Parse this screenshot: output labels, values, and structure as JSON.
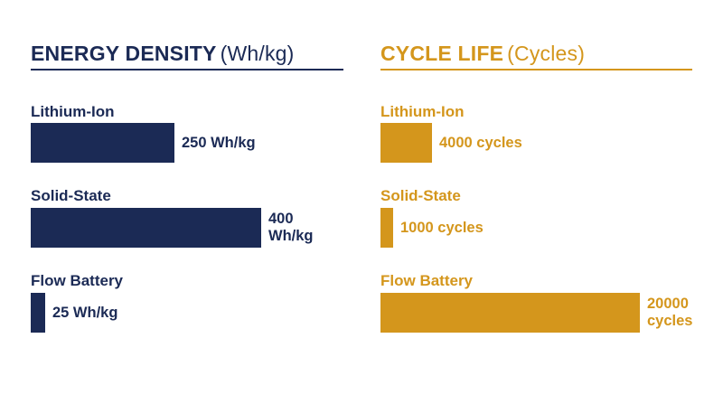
{
  "colors": {
    "navy": "#1b2a55",
    "gold": "#d4961c",
    "rule_navy": "#1b2a55",
    "rule_gold": "#d4961c"
  },
  "chart_data": [
    {
      "type": "bar",
      "orientation": "horizontal",
      "title": "ENERGY DENSITY",
      "unit": "(Wh/kg)",
      "color": "#1b2a55",
      "categories": [
        "Lithium-Ion",
        "Solid-State",
        "Flow Battery"
      ],
      "values": [
        250,
        400,
        25
      ],
      "value_labels": [
        "250 Wh/kg",
        "400 Wh/kg",
        "25 Wh/kg"
      ],
      "xlim": [
        0,
        400
      ],
      "grid": false
    },
    {
      "type": "bar",
      "orientation": "horizontal",
      "title": "CYCLE LIFE",
      "unit": "(Cycles)",
      "color": "#d4961c",
      "categories": [
        "Lithium-Ion",
        "Solid-State",
        "Flow Battery"
      ],
      "values": [
        4000,
        1000,
        20000
      ],
      "value_labels": [
        "4000 cycles",
        "1000 cycles",
        "20000 cycles"
      ],
      "xlim": [
        0,
        20000
      ],
      "grid": false
    }
  ]
}
